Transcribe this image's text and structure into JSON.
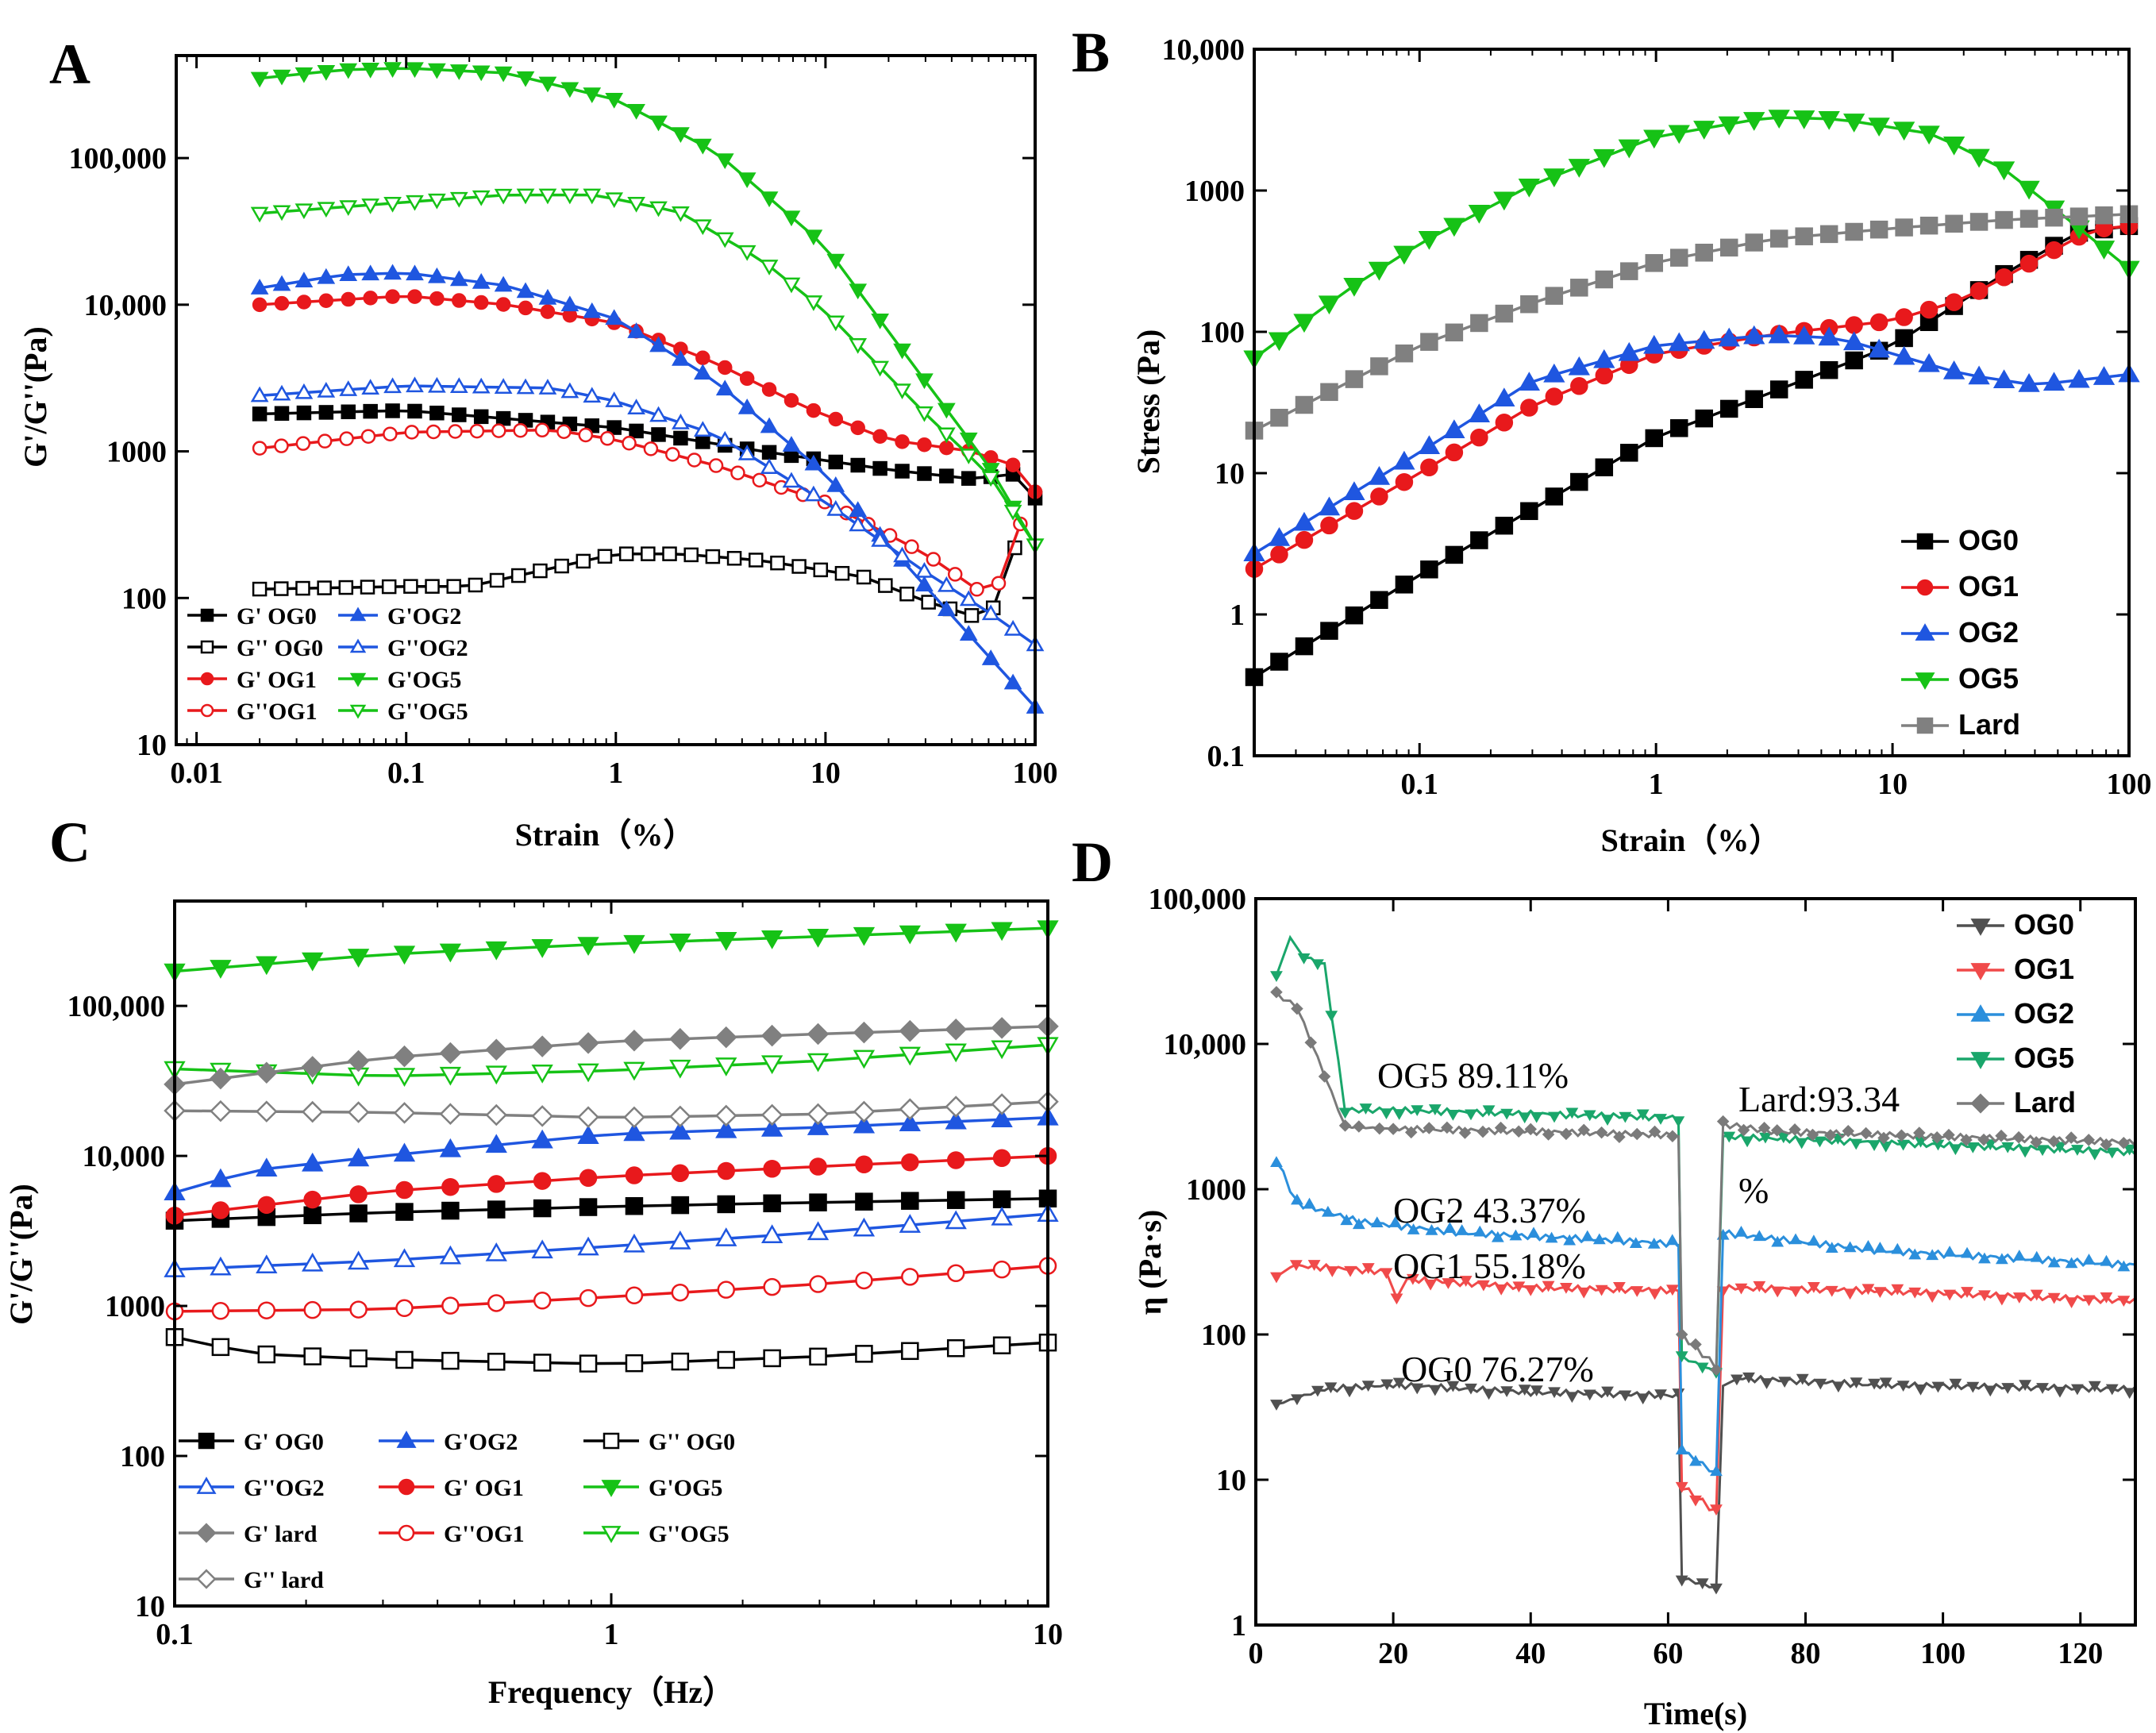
{
  "colors": {
    "OG0": "#000000",
    "OG1": "#e8191c",
    "OG2": "#1f56e0",
    "OG5": "#16c216",
    "Lard": "#808080",
    "D_OG0": "#505050",
    "D_OG1": "#f04a4a",
    "D_OG2": "#2b8fdc",
    "D_OG5": "#1aa66b",
    "D_Lard": "#7a7a7a"
  },
  "chart_data": [
    {
      "panel": "A",
      "type": "scatter",
      "xscale": "log",
      "yscale": "log",
      "xlim": [
        0.008,
        100
      ],
      "ylim": [
        10,
        500000
      ],
      "xticks": [
        0.01,
        0.1,
        1,
        10,
        100
      ],
      "xtick_labels": [
        "0.01",
        "0.1",
        "1",
        "10",
        "100"
      ],
      "yticks": [
        10,
        100,
        1000,
        10000,
        100000
      ],
      "ytick_labels": [
        "10",
        "100",
        "1000",
        "10,000",
        "100,000"
      ],
      "xlabel": "Strain（%）",
      "ylabel": "G'/G''(Pa)",
      "legend_labels": [
        "G' OG0",
        "G'OG2",
        "G'' OG0",
        "G''OG2",
        "G' OG1",
        "G'OG5",
        "G''OG1",
        "G''OG5"
      ],
      "series": [
        {
          "name": "G' OG0",
          "color_key": "OG0",
          "marker": "square",
          "filled": true,
          "x": [
            0.02,
            0.1,
            1,
            5,
            20,
            50,
            80,
            100
          ],
          "y": [
            1800,
            1900,
            1450,
            1000,
            750,
            650,
            700,
            480
          ]
        },
        {
          "name": "G'' OG0",
          "color_key": "OG0",
          "marker": "square",
          "filled": false,
          "x": [
            0.02,
            0.1,
            0.2,
            0.5,
            1,
            2,
            5,
            15,
            30,
            60,
            80
          ],
          "y": [
            115,
            120,
            120,
            160,
            200,
            200,
            180,
            140,
            95,
            70,
            220
          ]
        },
        {
          "name": "G' OG1",
          "color_key": "OG1",
          "marker": "circle",
          "filled": true,
          "x": [
            0.02,
            0.1,
            0.3,
            1,
            3,
            8,
            20,
            50,
            80,
            100
          ],
          "y": [
            10000,
            11500,
            10000,
            7500,
            4000,
            2000,
            1200,
            1000,
            800,
            530
          ]
        },
        {
          "name": "G''OG1",
          "color_key": "OG1",
          "marker": "circle",
          "filled": false,
          "x": [
            0.02,
            0.1,
            0.5,
            1,
            3,
            10,
            30,
            55,
            70,
            85
          ],
          "y": [
            1050,
            1350,
            1400,
            1200,
            800,
            450,
            200,
            110,
            130,
            320
          ]
        },
        {
          "name": "G'OG2",
          "color_key": "OG2",
          "marker": "triangle-up",
          "filled": true,
          "x": [
            0.02,
            0.05,
            0.1,
            0.3,
            1,
            3,
            10,
            30,
            60,
            100
          ],
          "y": [
            13000,
            16000,
            16500,
            13500,
            8000,
            3000,
            700,
            120,
            40,
            18
          ]
        },
        {
          "name": "G''OG2",
          "color_key": "OG2",
          "marker": "triangle-up",
          "filled": false,
          "x": [
            0.02,
            0.1,
            0.5,
            1,
            3,
            10,
            30,
            60,
            100
          ],
          "y": [
            2400,
            2800,
            2700,
            2200,
            1300,
            450,
            150,
            80,
            48
          ]
        },
        {
          "name": "G'OG5",
          "color_key": "OG5",
          "marker": "triangle-down",
          "filled": true,
          "x": [
            0.02,
            0.05,
            0.1,
            0.3,
            1,
            3,
            10,
            30,
            60,
            100
          ],
          "y": [
            350000,
            400000,
            410000,
            380000,
            250000,
            110000,
            25000,
            3000,
            800,
            230
          ]
        },
        {
          "name": "G''OG5",
          "color_key": "OG5",
          "marker": "triangle-down",
          "filled": false,
          "x": [
            0.02,
            0.1,
            0.3,
            0.8,
            2,
            5,
            10,
            30,
            60,
            100
          ],
          "y": [
            42000,
            50000,
            56000,
            56000,
            43000,
            20000,
            9000,
            1800,
            700,
            230
          ]
        }
      ]
    },
    {
      "panel": "B",
      "type": "scatter",
      "xscale": "log",
      "yscale": "log",
      "xlim": [
        0.02,
        100
      ],
      "ylim": [
        0.1,
        10000
      ],
      "xticks": [
        0.1,
        1,
        10,
        100
      ],
      "xtick_labels": [
        "0.1",
        "1",
        "10",
        "100"
      ],
      "yticks": [
        0.1,
        1,
        10,
        100,
        1000,
        10000
      ],
      "ytick_labels": [
        "0.1",
        "1",
        "10",
        "100",
        "1000",
        "10,000"
      ],
      "xlabel": "Strain（%）",
      "ylabel": "Stress (Pa)",
      "legend_labels": [
        "OG0",
        "OG1",
        "OG2",
        "OG5",
        "Lard"
      ],
      "series": [
        {
          "name": "OG0",
          "color_key": "OG0",
          "marker": "square",
          "filled": true,
          "x": [
            0.02,
            0.1,
            1,
            10,
            30,
            60,
            100
          ],
          "y": [
            0.36,
            1.9,
            18,
            80,
            260,
            500,
            560
          ]
        },
        {
          "name": "OG1",
          "color_key": "OG1",
          "marker": "circle",
          "filled": true,
          "x": [
            0.02,
            0.1,
            0.3,
            1,
            3,
            10,
            20,
            40,
            70,
            100
          ],
          "y": [
            2.1,
            10,
            30,
            70,
            95,
            120,
            170,
            320,
            530,
            560
          ]
        },
        {
          "name": "OG2",
          "color_key": "OG2",
          "marker": "triangle-up",
          "filled": true,
          "x": [
            0.02,
            0.1,
            0.3,
            1,
            3,
            6,
            10,
            20,
            40,
            100
          ],
          "y": [
            2.7,
            14,
            45,
            80,
            95,
            90,
            70,
            50,
            42,
            50
          ]
        },
        {
          "name": "OG5",
          "color_key": "OG5",
          "marker": "triangle-down",
          "filled": true,
          "x": [
            0.02,
            0.05,
            0.1,
            0.3,
            1,
            3,
            6,
            15,
            30,
            60,
            100
          ],
          "y": [
            65,
            200,
            420,
            1100,
            2400,
            3300,
            3200,
            2500,
            1400,
            560,
            280
          ]
        },
        {
          "name": "Lard",
          "color_key": "Lard",
          "marker": "square",
          "filled": true,
          "x": [
            0.02,
            0.1,
            0.3,
            1,
            3,
            10,
            30,
            100
          ],
          "y": [
            20,
            80,
            160,
            310,
            450,
            540,
            620,
            680
          ]
        }
      ]
    },
    {
      "panel": "C",
      "type": "scatter",
      "xscale": "log",
      "yscale": "log",
      "xlim": [
        0.1,
        10
      ],
      "ylim": [
        10,
        500000
      ],
      "xticks": [
        0.1,
        1,
        10
      ],
      "xtick_labels": [
        "0.1",
        "1",
        "10"
      ],
      "yticks": [
        10,
        100,
        1000,
        10000,
        100000
      ],
      "ytick_labels": [
        "10",
        "100",
        "1000",
        "10,000",
        "100,000"
      ],
      "xlabel": "Frequency（Hz）",
      "ylabel": "G'/G''(Pa)",
      "legend_labels": [
        "G' OG0",
        "G'OG2",
        "G'' OG0",
        "G''OG2",
        "G' OG1",
        "G'OG5",
        "G' lard",
        "G''OG1",
        "G''OG5",
        "G'' lard"
      ],
      "series": [
        {
          "name": "G' OG0",
          "color_key": "OG0",
          "marker": "square",
          "filled": true,
          "x": [
            0.1,
            0.3,
            1,
            3,
            10
          ],
          "y": [
            3700,
            4200,
            4600,
            4900,
            5200
          ]
        },
        {
          "name": "G'' OG0",
          "color_key": "OG0",
          "marker": "square",
          "filled": false,
          "x": [
            0.1,
            0.15,
            0.3,
            1,
            3,
            10
          ],
          "y": [
            620,
            480,
            440,
            410,
            460,
            570
          ]
        },
        {
          "name": "G' OG1",
          "color_key": "OG1",
          "marker": "circle",
          "filled": true,
          "x": [
            0.1,
            0.3,
            1,
            3,
            10
          ],
          "y": [
            4000,
            5800,
            7300,
            8500,
            10000
          ]
        },
        {
          "name": "G''OG1",
          "color_key": "OG1",
          "marker": "circle",
          "filled": false,
          "x": [
            0.1,
            0.3,
            1,
            3,
            10
          ],
          "y": [
            920,
            950,
            1150,
            1400,
            1850
          ]
        },
        {
          "name": "G'OG2",
          "color_key": "OG2",
          "marker": "triangle-up",
          "filled": true,
          "x": [
            0.1,
            0.15,
            0.3,
            1,
            3,
            10
          ],
          "y": [
            5700,
            8000,
            10000,
            14000,
            15500,
            18000
          ]
        },
        {
          "name": "G''OG2",
          "color_key": "OG2",
          "marker": "triangle-up",
          "filled": false,
          "x": [
            0.1,
            0.3,
            1,
            3,
            10
          ],
          "y": [
            1750,
            2000,
            2500,
            3100,
            4100
          ]
        },
        {
          "name": "G'OG5",
          "color_key": "OG5",
          "marker": "triangle-down",
          "filled": true,
          "x": [
            0.1,
            0.3,
            1,
            3,
            10
          ],
          "y": [
            170000,
            220000,
            260000,
            290000,
            330000
          ]
        },
        {
          "name": "G''OG5",
          "color_key": "OG5",
          "marker": "triangle-down",
          "filled": false,
          "x": [
            0.1,
            0.3,
            1,
            3,
            10
          ],
          "y": [
            38000,
            34000,
            37000,
            43000,
            55000
          ]
        },
        {
          "name": "G' lard",
          "color_key": "Lard",
          "marker": "diamond",
          "filled": true,
          "x": [
            0.1,
            0.3,
            1,
            3,
            10
          ],
          "y": [
            30000,
            45000,
            58000,
            65000,
            73000
          ]
        },
        {
          "name": "G'' lard",
          "color_key": "Lard",
          "marker": "diamond",
          "filled": false,
          "x": [
            0.1,
            0.3,
            1,
            3,
            10
          ],
          "y": [
            20000,
            19500,
            18000,
            19000,
            23000
          ]
        }
      ]
    },
    {
      "panel": "D",
      "type": "line",
      "xscale": "linear",
      "yscale": "log",
      "xlim": [
        0,
        128
      ],
      "ylim": [
        1,
        100000
      ],
      "xticks": [
        0,
        20,
        40,
        60,
        80,
        100,
        120
      ],
      "xtick_labels": [
        "0",
        "20",
        "40",
        "60",
        "80",
        "100",
        "120"
      ],
      "yticks": [
        1,
        10,
        100,
        1000,
        10000,
        100000
      ],
      "ytick_labels": [
        "1",
        "10",
        "100",
        "1000",
        "10,000",
        "100,000"
      ],
      "xlabel": "Time(s)",
      "ylabel": "η (Pa·s)",
      "legend_labels": [
        "OG0",
        "OG1",
        "OG2",
        "OG5",
        "Lard"
      ],
      "annotations": [
        "OG5 89.11%",
        "Lard:93.34",
        "%",
        "OG2 43.37%",
        "OG1 55.18%",
        "OG0 76.27%"
      ],
      "series": [
        {
          "name": "OG0",
          "color_key": "D_OG0",
          "marker": "triangle-down",
          "x": [
            3,
            10,
            20,
            40,
            61.5,
            62,
            67,
            68,
            70,
            90,
            128
          ],
          "y": [
            33,
            42,
            45,
            40,
            38,
            2.1,
            1.8,
            45,
            50,
            45,
            42
          ]
        },
        {
          "name": "OG1",
          "color_key": "D_OG1",
          "marker": "triangle-down",
          "x": [
            3,
            5,
            19,
            20.5,
            22,
            40,
            61.5,
            62,
            67,
            68,
            90,
            128
          ],
          "y": [
            260,
            300,
            270,
            170,
            240,
            210,
            200,
            9,
            6,
            210,
            200,
            170
          ]
        },
        {
          "name": "OG2",
          "color_key": "D_OG2",
          "marker": "triangle-up",
          "x": [
            3,
            6,
            15,
            30,
            50,
            61.5,
            62,
            67,
            68,
            90,
            128
          ],
          "y": [
            1600,
            800,
            600,
            500,
            450,
            420,
            16,
            11,
            500,
            380,
            300
          ]
        },
        {
          "name": "OG5",
          "color_key": "D_OG5",
          "marker": "triangle-down",
          "x": [
            3,
            5,
            7,
            10,
            13,
            20,
            40,
            61.5,
            62,
            67,
            68,
            90,
            128
          ],
          "y": [
            30000,
            55000,
            40000,
            35000,
            3500,
            3500,
            3300,
            3100,
            70,
            55,
            2300,
            2100,
            1800
          ]
        },
        {
          "name": "Lard",
          "color_key": "D_Lard",
          "marker": "diamond",
          "x": [
            3,
            6,
            9,
            13,
            20,
            40,
            61.5,
            62,
            67,
            68,
            75,
            100,
            128
          ],
          "y": [
            22000,
            18000,
            8000,
            2700,
            2600,
            2500,
            2350,
            100,
            60,
            2800,
            2500,
            2300,
            2100
          ]
        }
      ]
    }
  ]
}
